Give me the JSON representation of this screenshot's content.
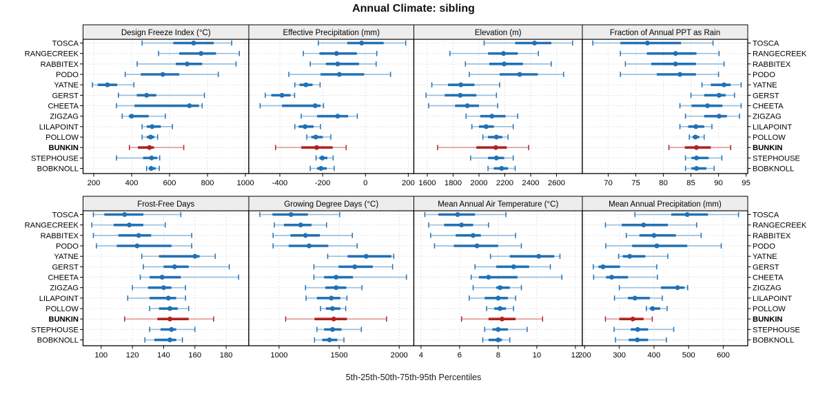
{
  "title": "Annual Climate: sibling",
  "caption": "5th-25th-50th-75th-95th Percentiles",
  "stations": [
    "TOSCA",
    "RANGECREEK",
    "RABBITEX",
    "PODO",
    "YATNE",
    "GERST",
    "CHEETA",
    "ZIGZAG",
    "LILAPOINT",
    "POLLOW",
    "BUNKIN",
    "STEPHOUSE",
    "BOBKNOLL"
  ],
  "highlight_station": "BUNKIN",
  "percentile_labels": [
    "5th",
    "25th",
    "50th",
    "75th",
    "95th"
  ],
  "colors": {
    "series": "#2171b5",
    "series_light": "#9bbfde",
    "highlight": "#b22222",
    "highlight_light": "#dc9b9b",
    "grid": "#d9d9d9",
    "strip_bg": "#ededed",
    "border": "#000000",
    "background": "#ffffff"
  },
  "chart_data": {
    "type": "scatter",
    "mark": "median-dot-with-5-25-75-95-percentile-bars",
    "legend_position": "none",
    "grid": "dotted",
    "layout": "2 rows x 4 columns, station labels on both left and right",
    "panels": [
      {
        "slug": "design-freeze-index",
        "title": "Design Freeze Index (°C)",
        "row": 0,
        "col": 0,
        "xlim": [
          143.6,
          1018
        ],
        "ticks": [
          200,
          400,
          600,
          800,
          1000
        ],
        "values": {
          "TOSCA": [
            455,
            620,
            727,
            833,
            928
          ],
          "RANGECREEK": [
            542,
            651,
            766,
            845,
            968
          ],
          "RABBITEX": [
            429,
            633,
            693,
            772,
            951
          ],
          "PODO": [
            366,
            448,
            564,
            651,
            857
          ],
          "YATNE": [
            193,
            221,
            272,
            324,
            412
          ],
          "GERST": [
            330,
            427,
            479,
            530,
            784
          ],
          "CHEETA": [
            320,
            415,
            705,
            755,
            772
          ],
          "ZIGZAG": [
            350,
            385,
            400,
            490,
            578
          ],
          "LILAPOINT": [
            455,
            480,
            508,
            554,
            615
          ],
          "POLLOW": [
            455,
            480,
            500,
            520,
            537
          ],
          "BUNKIN": [
            388,
            433,
            494,
            518,
            675
          ],
          "STEPHOUSE": [
            320,
            460,
            505,
            535,
            548
          ],
          "BOBKNOLL": [
            479,
            491,
            503,
            527,
            546
          ]
        }
      },
      {
        "slug": "effective-precipitation",
        "title": "Effective Precipitation (mm)",
        "row": 0,
        "col": 1,
        "xlim": [
          -545,
          226
        ],
        "ticks": [
          -400,
          -200,
          0,
          200
        ],
        "values": {
          "TOSCA": [
            -220,
            -85,
            -18,
            85,
            188
          ],
          "RANGECREEK": [
            -290,
            -215,
            -135,
            -40,
            53
          ],
          "RABBITEX": [
            -258,
            -185,
            -130,
            -30,
            50
          ],
          "PODO": [
            -358,
            -210,
            -122,
            -6,
            117
          ],
          "YATNE": [
            -330,
            -308,
            -278,
            -247,
            -212
          ],
          "GERST": [
            -468,
            -440,
            -390,
            -350,
            -331
          ],
          "CHEETA": [
            -492,
            -390,
            -235,
            -210,
            -196
          ],
          "ZIGZAG": [
            -300,
            -226,
            -130,
            -81,
            -38
          ],
          "LILAPOINT": [
            -330,
            -312,
            -282,
            -242,
            -210
          ],
          "POLLOW": [
            -274,
            -253,
            -232,
            -200,
            -162
          ],
          "BUNKIN": [
            -420,
            -300,
            -228,
            -153,
            -90
          ],
          "STEPHOUSE": [
            -231,
            -215,
            -202,
            -178,
            -151
          ],
          "BOBKNOLL": [
            -258,
            -226,
            -208,
            -181,
            -146
          ]
        }
      },
      {
        "slug": "elevation",
        "title": "Elevation (m)",
        "row": 0,
        "col": 2,
        "xlim": [
          1496,
          2800
        ],
        "ticks": [
          1600,
          1800,
          2000,
          2200,
          2400,
          2600
        ],
        "values": {
          "TOSCA": [
            2040,
            2280,
            2430,
            2560,
            2725
          ],
          "RANGECREEK": [
            1775,
            2070,
            2190,
            2300,
            2460
          ],
          "RABBITEX": [
            1895,
            2080,
            2195,
            2340,
            2560
          ],
          "PODO": [
            1925,
            2160,
            2315,
            2455,
            2655
          ],
          "YATNE": [
            1635,
            1760,
            1860,
            1965,
            2160
          ],
          "GERST": [
            1590,
            1735,
            1855,
            1980,
            2135
          ],
          "CHEETA": [
            1610,
            1815,
            1910,
            2000,
            2145
          ],
          "ZIGZAG": [
            1900,
            2010,
            2100,
            2205,
            2300
          ],
          "LILAPOINT": [
            1945,
            2000,
            2055,
            2115,
            2265
          ],
          "POLLOW": [
            2030,
            2070,
            2135,
            2180,
            2225
          ],
          "BUNKIN": [
            1680,
            1980,
            2130,
            2215,
            2385
          ],
          "STEPHOUSE": [
            1935,
            2070,
            2135,
            2195,
            2265
          ],
          "BOBKNOLL": [
            2070,
            2115,
            2175,
            2225,
            2280
          ]
        }
      },
      {
        "slug": "fraction-annual-ppt-rain",
        "title": "Fraction of Annual PPT as Rain",
        "row": 0,
        "col": 3,
        "xlim": [
          65.3,
          95.3
        ],
        "ticks": [
          70,
          75,
          80,
          85,
          90,
          95
        ],
        "values": {
          "TOSCA": [
            67.2,
            72.2,
            77.1,
            83.2,
            89.0
          ],
          "RANGECREEK": [
            72.2,
            77.0,
            82.2,
            86.0,
            90.1
          ],
          "RABBITEX": [
            73.1,
            77.8,
            82.2,
            85.9,
            91.0
          ],
          "PODO": [
            72.2,
            78.8,
            83.0,
            85.9,
            90.0
          ],
          "YATNE": [
            87.0,
            88.6,
            91.0,
            92.2,
            94.1
          ],
          "GERST": [
            85.0,
            87.4,
            90.1,
            91.3,
            92.9
          ],
          "CHEETA": [
            83.0,
            85.1,
            88.0,
            90.7,
            94.1
          ],
          "ZIGZAG": [
            84.0,
            87.4,
            90.1,
            91.5,
            93.8
          ],
          "LILAPOINT": [
            83.0,
            84.5,
            85.9,
            87.4,
            88.8
          ],
          "POLLOW": [
            84.7,
            85.3,
            85.8,
            86.5,
            87.4
          ],
          "BUNKIN": [
            81.0,
            83.9,
            86.0,
            88.6,
            92.2
          ],
          "STEPHOUSE": [
            84.0,
            85.1,
            86.0,
            88.2,
            90.6
          ],
          "BOBKNOLL": [
            84.0,
            85.1,
            86.0,
            87.8,
            89.2
          ]
        }
      },
      {
        "slug": "frost-free-days",
        "title": "Frost-Free Days",
        "row": 1,
        "col": 0,
        "xlim": [
          88.4,
          194.5
        ],
        "ticks": [
          100,
          120,
          140,
          160,
          180
        ],
        "values": {
          "TOSCA": [
            95,
            102,
            115,
            127,
            151
          ],
          "RANGECREEK": [
            94,
            108,
            118,
            127,
            141
          ],
          "RABBITEX": [
            95,
            111,
            124,
            132,
            158
          ],
          "PODO": [
            97,
            110,
            123,
            145,
            158
          ],
          "YATNE": [
            126,
            137,
            160,
            163,
            173
          ],
          "GERST": [
            127,
            140,
            147,
            156,
            182
          ],
          "CHEETA": [
            125,
            131,
            139,
            151,
            188
          ],
          "ZIGZAG": [
            120,
            130,
            140,
            145,
            154
          ],
          "LILAPOINT": [
            117,
            131,
            143,
            148,
            154
          ],
          "POLLOW": [
            131,
            137,
            144,
            149,
            156
          ],
          "BUNKIN": [
            115,
            136,
            144,
            156,
            172
          ],
          "STEPHOUSE": [
            131,
            138,
            145,
            148,
            160
          ],
          "BOBKNOLL": [
            128,
            134,
            144,
            148,
            152
          ]
        }
      },
      {
        "slug": "growing-degree-days",
        "title": "Growing Degree Days (°C)",
        "row": 1,
        "col": 1,
        "xlim": [
          748,
          2122
        ],
        "ticks": [
          1000,
          1500,
          2000
        ],
        "values": {
          "TOSCA": [
            840,
            945,
            1100,
            1240,
            1505
          ],
          "RANGECREEK": [
            960,
            1040,
            1180,
            1270,
            1395
          ],
          "RABBITEX": [
            950,
            1095,
            1220,
            1340,
            1610
          ],
          "PODO": [
            950,
            1080,
            1250,
            1410,
            1650
          ],
          "YATNE": [
            1405,
            1570,
            1725,
            1935,
            1955
          ],
          "GERST": [
            1290,
            1495,
            1630,
            1780,
            1945
          ],
          "CHEETA": [
            1290,
            1375,
            1475,
            1615,
            2060
          ],
          "ZIGZAG": [
            1220,
            1385,
            1475,
            1560,
            1690
          ],
          "LILAPOINT": [
            1225,
            1315,
            1435,
            1510,
            1565
          ],
          "POLLOW": [
            1345,
            1390,
            1445,
            1510,
            1555
          ],
          "BUNKIN": [
            1055,
            1295,
            1455,
            1565,
            1895
          ],
          "STEPHOUSE": [
            1315,
            1375,
            1445,
            1520,
            1685
          ],
          "BOBKNOLL": [
            1295,
            1360,
            1420,
            1485,
            1540
          ]
        }
      },
      {
        "slug": "mean-annual-air-temperature",
        "title": "Mean Annual Air Temperature (°C)",
        "row": 1,
        "col": 2,
        "xlim": [
          3.63,
          12.36
        ],
        "ticks": [
          4,
          6,
          8,
          10,
          12
        ],
        "values": {
          "TOSCA": [
            4.2,
            4.9,
            5.9,
            6.8,
            8.4
          ],
          "RANGECREEK": [
            4.4,
            5.2,
            6.1,
            6.7,
            7.5
          ],
          "RABBITEX": [
            4.5,
            5.8,
            6.7,
            7.1,
            8.9
          ],
          "PODO": [
            4.7,
            5.7,
            6.9,
            8.0,
            9.2
          ],
          "YATNE": [
            7.6,
            8.6,
            10.1,
            10.9,
            11.2
          ],
          "GERST": [
            6.8,
            7.9,
            8.8,
            9.6,
            10.7
          ],
          "CHEETA": [
            6.6,
            7.0,
            7.5,
            9.0,
            11.3
          ],
          "ZIGZAG": [
            6.7,
            7.9,
            8.1,
            8.6,
            9.2
          ],
          "LILAPOINT": [
            6.5,
            7.3,
            8.0,
            8.5,
            8.9
          ],
          "POLLOW": [
            7.4,
            7.8,
            8.1,
            8.4,
            8.8
          ],
          "BUNKIN": [
            6.1,
            7.5,
            8.2,
            8.9,
            10.3
          ],
          "STEPHOUSE": [
            7.3,
            7.7,
            8.0,
            8.5,
            9.5
          ],
          "BOBKNOLL": [
            7.2,
            7.5,
            8.0,
            8.2,
            8.6
          ]
        }
      },
      {
        "slug": "mean-annual-precipitation",
        "title": "Mean Annual Precipitation (mm)",
        "row": 1,
        "col": 3,
        "xlim": [
          193.4,
          670.5
        ],
        "ticks": [
          200,
          300,
          400,
          500,
          600
        ],
        "values": {
          "TOSCA": [
            345,
            450,
            496,
            556,
            644
          ],
          "RANGECREEK": [
            260,
            307,
            370,
            440,
            523
          ],
          "RABBITEX": [
            320,
            358,
            400,
            463,
            536
          ],
          "PODO": [
            261,
            337,
            408,
            496,
            594
          ],
          "YATNE": [
            298,
            310,
            330,
            375,
            440
          ],
          "GERST": [
            225,
            240,
            253,
            302,
            408
          ],
          "CHEETA": [
            226,
            262,
            278,
            325,
            410
          ],
          "ZIGZAG": [
            300,
            420,
            468,
            488,
            497
          ],
          "LILAPOINT": [
            286,
            325,
            345,
            388,
            424
          ],
          "POLLOW": [
            378,
            388,
            396,
            418,
            438
          ],
          "BUNKIN": [
            260,
            300,
            339,
            370,
            395
          ],
          "STEPHOUSE": [
            285,
            333,
            353,
            383,
            457
          ],
          "BOBKNOLL": [
            289,
            327,
            352,
            383,
            436
          ]
        }
      }
    ]
  }
}
